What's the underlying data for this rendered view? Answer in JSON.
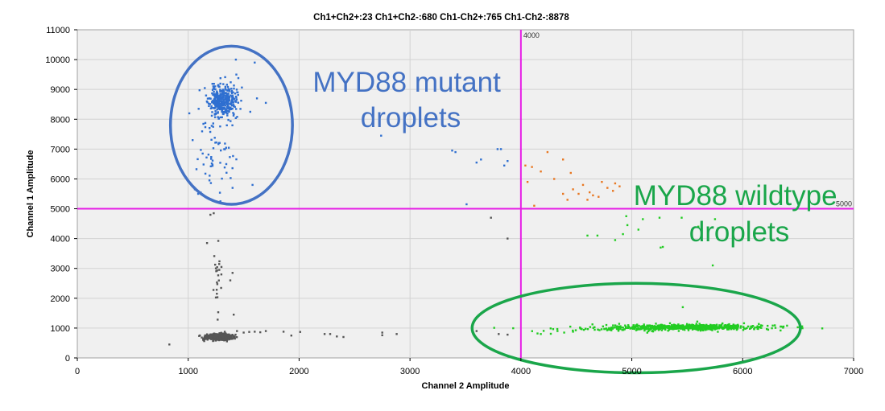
{
  "chart_data": {
    "type": "scatter",
    "title": "Ch1+Ch2+:23  Ch1+Ch2-:680  Ch1-Ch2+:765  Ch1-Ch2-:8878",
    "xlabel": "Channel 2 Amplitude",
    "ylabel": "Channel 1 Amplitude",
    "xlim": [
      0,
      7000
    ],
    "ylim": [
      0,
      11000
    ],
    "xticks": [
      0,
      1000,
      2000,
      3000,
      4000,
      5000,
      6000,
      7000
    ],
    "yticks": [
      0,
      1000,
      2000,
      3000,
      4000,
      5000,
      6000,
      7000,
      8000,
      9000,
      10000,
      11000
    ],
    "grid": true,
    "threshold_x": {
      "value": 4000,
      "label": "4000",
      "color": "#e61ee6"
    },
    "threshold_y": {
      "value": 5000,
      "label": "5000",
      "color": "#e61ee6"
    },
    "quadrants": [
      {
        "name": "Ch1+Ch2-",
        "color": "#2f6fd0",
        "count": 680
      },
      {
        "name": "Ch1+Ch2+",
        "color": "#e87722",
        "count": 23
      },
      {
        "name": "Ch1-Ch2+",
        "color": "#22cc22",
        "count": 765
      },
      {
        "name": "Ch1-Ch2-",
        "color": "#555555",
        "count": 8878
      }
    ],
    "series": [
      {
        "quadrant": "Ch1+Ch2-",
        "color": "#2f6fd0",
        "clusters": [
          {
            "cx": 1310,
            "cy": 8600,
            "sx": 60,
            "sy": 260,
            "n": 360,
            "seed": 11
          },
          {
            "cx": 1250,
            "cy": 7200,
            "sx": 80,
            "sy": 800,
            "n": 70,
            "seed": 12
          }
        ],
        "points": [
          [
            1010,
            8200
          ],
          [
            1040,
            7300
          ],
          [
            1060,
            5650
          ],
          [
            1090,
            5500
          ],
          [
            1560,
            8250
          ],
          [
            1620,
            8700
          ],
          [
            1600,
            9900
          ],
          [
            1430,
            10000
          ],
          [
            1700,
            8550
          ],
          [
            1580,
            5800
          ],
          [
            1400,
            5700
          ],
          [
            2740,
            7450
          ],
          [
            3380,
            6950
          ],
          [
            3410,
            6900
          ],
          [
            3600,
            6550
          ],
          [
            3640,
            6650
          ],
          [
            3790,
            7000
          ],
          [
            3820,
            7000
          ],
          [
            3850,
            6450
          ],
          [
            3510,
            5150
          ],
          [
            3880,
            6600
          ]
        ]
      },
      {
        "quadrant": "Ch1+Ch2+",
        "color": "#e87722",
        "clusters": [],
        "points": [
          [
            4040,
            6450
          ],
          [
            4100,
            6400
          ],
          [
            4180,
            6250
          ],
          [
            4240,
            6900
          ],
          [
            4380,
            6650
          ],
          [
            4450,
            6200
          ],
          [
            4470,
            5650
          ],
          [
            4420,
            5300
          ],
          [
            4520,
            5500
          ],
          [
            4560,
            5800
          ],
          [
            4620,
            5550
          ],
          [
            4700,
            5400
          ],
          [
            4780,
            5700
          ],
          [
            4830,
            5600
          ],
          [
            4850,
            5850
          ],
          [
            4890,
            5750
          ],
          [
            4380,
            5500
          ],
          [
            4120,
            5100
          ],
          [
            4650,
            5450
          ],
          [
            4600,
            5300
          ],
          [
            4730,
            5900
          ],
          [
            4300,
            6000
          ],
          [
            4060,
            5900
          ]
        ]
      },
      {
        "quadrant": "Ch1-Ch2+",
        "color": "#22cc22",
        "clusters": [
          {
            "cx": 5550,
            "cy": 1030,
            "sx": 320,
            "sy": 45,
            "n": 620,
            "seed": 21
          },
          {
            "cx": 4850,
            "cy": 980,
            "sx": 350,
            "sy": 40,
            "n": 90,
            "seed": 22
          }
        ],
        "points": [
          [
            4150,
            820
          ],
          [
            4180,
            800
          ],
          [
            4270,
            810
          ],
          [
            4330,
            900
          ],
          [
            4470,
            880
          ],
          [
            4390,
            850
          ],
          [
            4950,
            4750
          ],
          [
            4960,
            4450
          ],
          [
            4920,
            4150
          ],
          [
            5100,
            4650
          ],
          [
            5250,
            4700
          ],
          [
            5260,
            3700
          ],
          [
            5280,
            3720
          ],
          [
            5450,
            4700
          ],
          [
            5750,
            4650
          ],
          [
            5780,
            4350
          ],
          [
            4850,
            3950
          ],
          [
            5600,
            4400
          ],
          [
            5460,
            1700
          ],
          [
            5730,
            3100
          ],
          [
            6400,
            1080
          ],
          [
            6350,
            1050
          ],
          [
            4690,
            4100
          ],
          [
            4600,
            4100
          ],
          [
            5060,
            4300
          ]
        ]
      },
      {
        "quadrant": "Ch1-Ch2-",
        "color": "#555555",
        "clusters": [
          {
            "cx": 1280,
            "cy": 700,
            "sx": 55,
            "sy": 45,
            "n": 900,
            "seed": 31
          },
          {
            "cx": 1270,
            "cy": 2500,
            "sx": 25,
            "sy": 600,
            "n": 22,
            "seed": 32
          }
        ],
        "points": [
          [
            830,
            450
          ],
          [
            1170,
            3850
          ],
          [
            1200,
            4800
          ],
          [
            1230,
            4850
          ],
          [
            1250,
            3000
          ],
          [
            1280,
            2950
          ],
          [
            1300,
            3050
          ],
          [
            1380,
            2600
          ],
          [
            1400,
            2850
          ],
          [
            1410,
            1450
          ],
          [
            1440,
            900
          ],
          [
            1500,
            850
          ],
          [
            1550,
            870
          ],
          [
            1600,
            880
          ],
          [
            1650,
            860
          ],
          [
            1700,
            900
          ],
          [
            1930,
            750
          ],
          [
            2230,
            800
          ],
          [
            2280,
            800
          ],
          [
            2340,
            720
          ],
          [
            2400,
            700
          ],
          [
            2750,
            850
          ],
          [
            2750,
            760
          ],
          [
            2880,
            800
          ],
          [
            3600,
            900
          ],
          [
            3730,
            4700
          ],
          [
            3800,
            800
          ],
          [
            3880,
            780
          ],
          [
            3880,
            4000
          ],
          [
            2010,
            870
          ],
          [
            1860,
            880
          ]
        ]
      }
    ]
  },
  "annotations": [
    {
      "lines": [
        "MYD88 mutant",
        "droplets"
      ],
      "color": "#4472c4"
    },
    {
      "lines": [
        "MYD88 wildtype",
        "droplets"
      ],
      "color": "#1aa64a"
    }
  ],
  "ellipses": [
    {
      "label": "mutant-cluster-ellipse",
      "color": "#4472c4",
      "cx": 1390,
      "cy": 7800,
      "rx": 550,
      "ry": 2650
    },
    {
      "label": "wildtype-cluster-ellipse",
      "color": "#1aa64a",
      "cx": 5040,
      "cy": 1000,
      "rx": 1480,
      "ry": 1500
    }
  ]
}
